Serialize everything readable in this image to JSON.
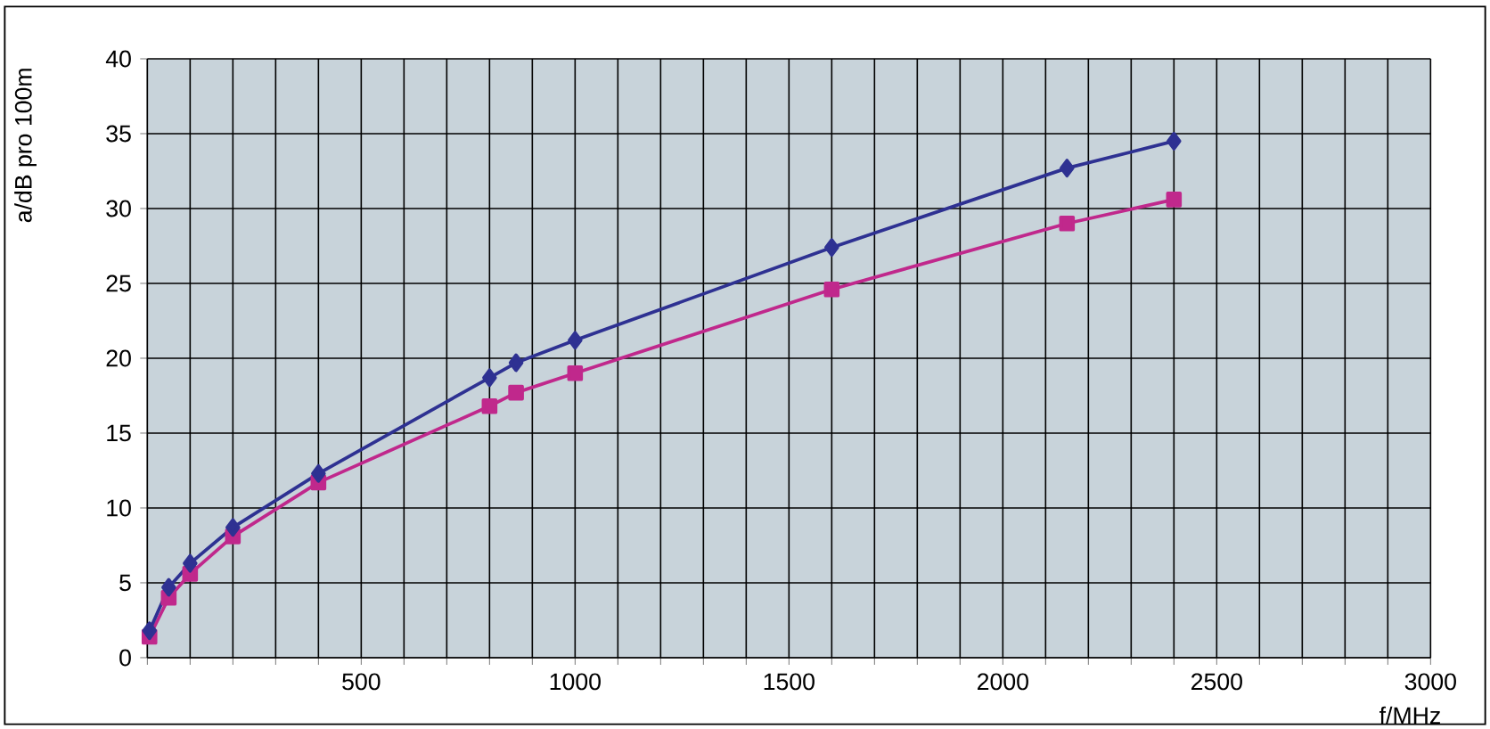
{
  "chart_data": {
    "type": "line",
    "xlabel": "f/MHz",
    "ylabel": "a/dB pro 100m",
    "xlim": [
      0,
      3000
    ],
    "ylim": [
      0,
      40
    ],
    "xticks": [
      {
        "value": 0,
        "label": null
      },
      {
        "value": 100,
        "label": null
      },
      {
        "value": 200,
        "label": null
      },
      {
        "value": 300,
        "label": null
      },
      {
        "value": 400,
        "label": null
      },
      500,
      {
        "value": 600,
        "label": null
      },
      {
        "value": 700,
        "label": null
      },
      {
        "value": 800,
        "label": null
      },
      {
        "value": 900,
        "label": null
      },
      1000,
      {
        "value": 1100,
        "label": null
      },
      {
        "value": 1200,
        "label": null
      },
      {
        "value": 1300,
        "label": null
      },
      {
        "value": 1400,
        "label": null
      },
      1500,
      {
        "value": 1600,
        "label": null
      },
      {
        "value": 1700,
        "label": null
      },
      {
        "value": 1800,
        "label": null
      },
      {
        "value": 1900,
        "label": null
      },
      2000,
      {
        "value": 2100,
        "label": null
      },
      {
        "value": 2200,
        "label": null
      },
      {
        "value": 2300,
        "label": null
      },
      {
        "value": 2400,
        "label": null
      },
      2500,
      {
        "value": 2600,
        "label": null
      },
      {
        "value": 2700,
        "label": null
      },
      {
        "value": 2800,
        "label": null
      },
      {
        "value": 2900,
        "label": null
      },
      3000
    ],
    "yticks": [
      0,
      5,
      10,
      15,
      20,
      25,
      30,
      35,
      40
    ],
    "grid": true,
    "line_style": "solid",
    "x": [
      5,
      50,
      100,
      200,
      400,
      800,
      862,
      1000,
      1600,
      2150,
      2400
    ],
    "series": [
      {
        "color": "#2e3192",
        "marker": "diamond",
        "values": [
          1.8,
          4.7,
          6.3,
          8.7,
          12.3,
          18.7,
          19.7,
          21.2,
          27.4,
          32.7,
          34.5
        ]
      },
      {
        "color": "#c0288c",
        "marker": "square",
        "values": [
          1.4,
          4.0,
          5.6,
          8.1,
          11.7,
          16.8,
          17.7,
          19.0,
          24.6,
          29.0,
          30.6
        ]
      }
    ]
  }
}
